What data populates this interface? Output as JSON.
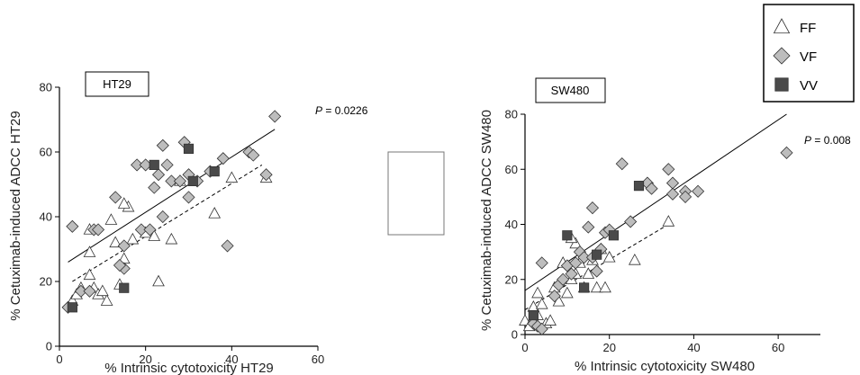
{
  "chart_data": [
    {
      "type": "scatter",
      "panel_label": "HT29",
      "xlabel": "% Intrinsic cytotoxicity HT29",
      "ylabel": "% Cetuximab-induced ADCC HT29",
      "xlim": [
        0,
        60
      ],
      "ylim": [
        0,
        80
      ],
      "xticks": [
        "0",
        "20",
        "40",
        "60"
      ],
      "yticks": [
        "0",
        "20",
        "40",
        "60",
        "80"
      ],
      "annotation_prefix": "P",
      "annotation_value": " = 0.0226",
      "series": [
        {
          "key": "FF",
          "points": [
            [
              3,
              14
            ],
            [
              4,
              16
            ],
            [
              5,
              18
            ],
            [
              7,
              22
            ],
            [
              8,
              18
            ],
            [
              7,
              29
            ],
            [
              9,
              16
            ],
            [
              11,
              14
            ],
            [
              12,
              39
            ],
            [
              13,
              32
            ],
            [
              14,
              19
            ],
            [
              15,
              27
            ],
            [
              16,
              43
            ],
            [
              17,
              33
            ],
            [
              20,
              35
            ],
            [
              22,
              34
            ],
            [
              23,
              20
            ],
            [
              26,
              33
            ],
            [
              28,
              51
            ],
            [
              36,
              41
            ],
            [
              40,
              52
            ],
            [
              48,
              52
            ],
            [
              7,
              36
            ],
            [
              15,
              44
            ],
            [
              10,
              17
            ]
          ]
        },
        {
          "key": "VF",
          "points": [
            [
              2,
              12
            ],
            [
              3,
              37
            ],
            [
              5,
              17
            ],
            [
              7,
              17
            ],
            [
              8,
              36
            ],
            [
              9,
              36
            ],
            [
              13,
              46
            ],
            [
              15,
              24
            ],
            [
              15,
              31
            ],
            [
              18,
              56
            ],
            [
              19,
              36
            ],
            [
              20,
              56
            ],
            [
              21,
              36
            ],
            [
              22,
              49
            ],
            [
              23,
              53
            ],
            [
              24,
              62
            ],
            [
              25,
              56
            ],
            [
              26,
              51
            ],
            [
              28,
              51
            ],
            [
              29,
              63
            ],
            [
              30,
              53
            ],
            [
              30,
              46
            ],
            [
              32,
              51
            ],
            [
              38,
              58
            ],
            [
              35,
              54
            ],
            [
              39,
              31
            ],
            [
              44,
              60
            ],
            [
              45,
              59
            ],
            [
              48,
              53
            ],
            [
              50,
              71
            ],
            [
              14,
              25
            ],
            [
              24,
              40
            ]
          ]
        },
        {
          "key": "VV",
          "points": [
            [
              3,
              12
            ],
            [
              15,
              18
            ],
            [
              22,
              56
            ],
            [
              30,
              61
            ],
            [
              31,
              51
            ],
            [
              36,
              54
            ]
          ]
        }
      ],
      "fit_lines": [
        {
          "style": "solid",
          "x": [
            2,
            50
          ],
          "y": [
            26,
            67
          ]
        },
        {
          "style": "dashed",
          "x": [
            3,
            47
          ],
          "y": [
            20,
            56
          ]
        }
      ]
    },
    {
      "type": "scatter",
      "panel_label": "SW480",
      "xlabel": "% Intrinsic cytotoxicity SW480",
      "ylabel": "% Cetuximab-induced ADCC SW480",
      "xlim": [
        0,
        70
      ],
      "ylim": [
        0,
        80
      ],
      "xticks": [
        "0",
        "20",
        "40",
        "60"
      ],
      "yticks": [
        "0",
        "20",
        "40",
        "60",
        "80"
      ],
      "annotation_prefix": "P",
      "annotation_value": " = 0.008",
      "series": [
        {
          "key": "FF",
          "points": [
            [
              0,
              5
            ],
            [
              1,
              3
            ],
            [
              2,
              10
            ],
            [
              3,
              15
            ],
            [
              3,
              7
            ],
            [
              4,
              11
            ],
            [
              5,
              4
            ],
            [
              6,
              5
            ],
            [
              7,
              17
            ],
            [
              8,
              12
            ],
            [
              9,
              26
            ],
            [
              10,
              15
            ],
            [
              11,
              20
            ],
            [
              12,
              33
            ],
            [
              12,
              22
            ],
            [
              13,
              26
            ],
            [
              14,
              17
            ],
            [
              15,
              22
            ],
            [
              16,
              27
            ],
            [
              17,
              17
            ],
            [
              18,
              31
            ],
            [
              19,
              17
            ],
            [
              20,
              28
            ],
            [
              26,
              27
            ],
            [
              34,
              41
            ],
            [
              11,
              35
            ]
          ]
        },
        {
          "key": "VF",
          "points": [
            [
              2,
              4
            ],
            [
              3,
              3
            ],
            [
              4,
              2
            ],
            [
              4,
              26
            ],
            [
              7,
              14
            ],
            [
              8,
              18
            ],
            [
              9,
              20
            ],
            [
              10,
              25
            ],
            [
              11,
              22
            ],
            [
              12,
              26
            ],
            [
              13,
              30
            ],
            [
              14,
              28
            ],
            [
              15,
              39
            ],
            [
              16,
              46
            ],
            [
              17,
              23
            ],
            [
              18,
              31
            ],
            [
              19,
              37
            ],
            [
              20,
              38
            ],
            [
              23,
              62
            ],
            [
              25,
              41
            ],
            [
              29,
              55
            ],
            [
              30,
              53
            ],
            [
              34,
              60
            ],
            [
              35,
              55
            ],
            [
              35,
              51
            ],
            [
              38,
              52
            ],
            [
              38,
              50
            ],
            [
              41,
              52
            ],
            [
              62,
              66
            ],
            [
              16,
              28
            ]
          ]
        },
        {
          "key": "VV",
          "points": [
            [
              2,
              7
            ],
            [
              10,
              36
            ],
            [
              14,
              17
            ],
            [
              17,
              29
            ],
            [
              21,
              36
            ],
            [
              27,
              54
            ]
          ]
        }
      ],
      "fit_lines": [
        {
          "style": "solid",
          "x": [
            0,
            62
          ],
          "y": [
            16,
            80
          ]
        },
        {
          "style": "dashed",
          "x": [
            0,
            34
          ],
          "y": [
            9,
            40
          ]
        }
      ]
    }
  ],
  "legend": {
    "placement": "top-right",
    "entries": [
      {
        "key": "FF",
        "label": "FF",
        "marker": "triangle"
      },
      {
        "key": "VF",
        "label": "VF",
        "marker": "diamond"
      },
      {
        "key": "VV",
        "label": "VV",
        "marker": "square"
      }
    ]
  },
  "colors": {
    "FF_fill": "#ffffff",
    "VF_fill": "#bdbdbd",
    "VV_fill": "#4a4a4a",
    "stroke": "#333333",
    "axis": "#000000"
  }
}
